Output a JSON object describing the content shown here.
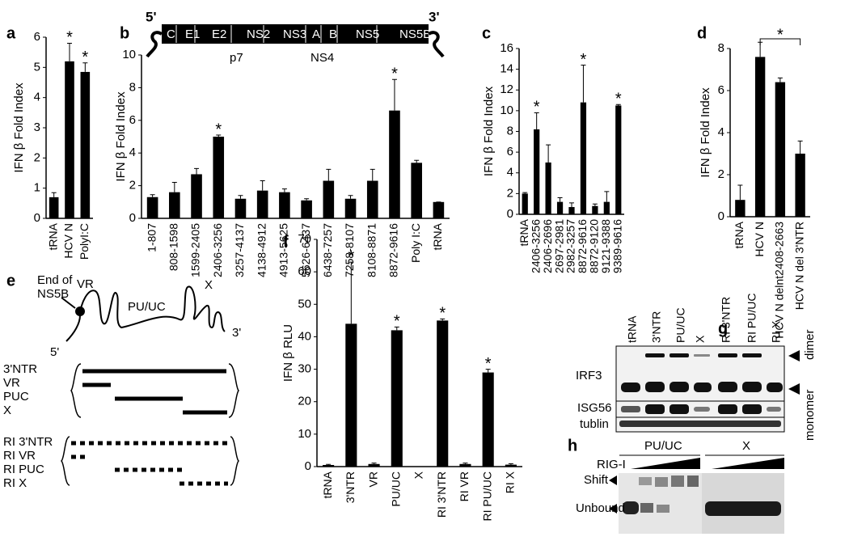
{
  "chart_data": [
    {
      "type": "bar",
      "label": "a",
      "y_label": "IFN β Fold Index",
      "color": "#000000",
      "categories": [
        "tRNA",
        "HCV N",
        "PolyI:C"
      ],
      "values": [
        0.7,
        5.2,
        4.85
      ],
      "errors": [
        0.15,
        0.6,
        0.3
      ],
      "stars": [
        null,
        "*",
        "*"
      ],
      "ylim": [
        0,
        6
      ],
      "yticks": [
        0,
        1,
        2,
        3,
        4,
        5,
        6
      ]
    },
    {
      "type": "bar",
      "label": "b",
      "y_label": "IFN β Fold Index",
      "color": "#000000",
      "categories": [
        "1-807",
        "808-1598",
        "1599-2405",
        "2406-3256",
        "3257-4137",
        "4138-4912",
        "4913-5625",
        "5626-6437",
        "6438-7257",
        "7258-8107",
        "8108-8871",
        "8872-9616",
        "Poly I:C",
        "tRNA"
      ],
      "values": [
        1.3,
        1.6,
        2.7,
        5.0,
        1.2,
        1.7,
        1.6,
        1.1,
        2.3,
        1.2,
        2.3,
        6.6,
        3.4,
        1.0
      ],
      "errors": [
        0.15,
        0.6,
        0.35,
        0.1,
        0.2,
        0.6,
        0.2,
        0.1,
        0.7,
        0.2,
        0.7,
        1.9,
        0.15,
        0
      ],
      "stars": [
        null,
        null,
        null,
        "*",
        null,
        null,
        null,
        null,
        null,
        null,
        null,
        "*",
        null,
        null
      ],
      "ylim": [
        0,
        10
      ],
      "yticks": [
        0,
        2,
        4,
        6,
        8,
        10
      ],
      "genome": {
        "five_prime": "5'",
        "three_prime": "3'",
        "segments": [
          "C",
          "E1",
          "E2",
          "NS2",
          "NS3",
          "A",
          "B",
          "NS5",
          "NS5B"
        ],
        "below": [
          "p7",
          "NS4"
        ]
      }
    },
    {
      "type": "bar",
      "label": "c",
      "y_label": "IFN β Fold Index",
      "color": "#000000",
      "categories": [
        "tRNA",
        "2406-3256",
        "2406-2696",
        "2697-2981",
        "2982-3257",
        "8872-9616",
        "8872-9120",
        "9121-9388",
        "9389-9616"
      ],
      "values": [
        2.0,
        8.2,
        5.0,
        1.2,
        0.7,
        10.8,
        0.8,
        1.2,
        10.5
      ],
      "errors": [
        0.1,
        1.6,
        1.7,
        0.4,
        0.4,
        3.6,
        0.2,
        1.0,
        0.1
      ],
      "stars": [
        null,
        "*",
        null,
        null,
        null,
        "*",
        null,
        null,
        "*"
      ],
      "ylim": [
        0,
        16
      ],
      "yticks": [
        0,
        2,
        4,
        6,
        8,
        10,
        12,
        14,
        16
      ]
    },
    {
      "type": "bar",
      "label": "d",
      "y_label": "IFN β Fold Index",
      "color": "#000000",
      "categories": [
        "tRNA",
        "HCV N",
        "HCV N delnt2408-2663",
        "HCV N del 3'NTR"
      ],
      "values": [
        0.8,
        7.6,
        6.4,
        3.0
      ],
      "errors": [
        0.7,
        0.7,
        0.2,
        0.6
      ],
      "bracket_label": "*",
      "ylim": [
        0,
        8
      ],
      "yticks": [
        0,
        2,
        4,
        6,
        8
      ]
    },
    {
      "type": "bar",
      "label": "f",
      "y_label": "IFN β RLU",
      "color": "#000000",
      "categories": [
        "tRNA",
        "3'NTR",
        "VR",
        "PU/UC",
        "X",
        "RI 3'NTR",
        "RI VR",
        "RI PU/UC",
        "RI X"
      ],
      "values": [
        0.5,
        44,
        0.8,
        42,
        0,
        45,
        0.8,
        29,
        0.6
      ],
      "errors": [
        0.2,
        19,
        0.3,
        1,
        0,
        0.5,
        0.3,
        1,
        0.3
      ],
      "stars": [
        null,
        "*",
        null,
        "*",
        null,
        "*",
        null,
        "*",
        null
      ],
      "ylim": [
        0,
        70
      ],
      "yticks": [
        0,
        10,
        20,
        30,
        40,
        50,
        60,
        70
      ]
    }
  ],
  "panel_e": {
    "label": "e",
    "end_label": [
      "End of",
      "NS5B"
    ],
    "regions": [
      "VR",
      "PU/UC",
      "X"
    ],
    "ends": [
      "5'",
      "3'"
    ],
    "constructs": [
      "3'NTR",
      "VR",
      "PUC",
      "X"
    ],
    "ri_constructs": [
      "RI 3'NTR",
      "RI VR",
      "RI PUC",
      "RI X"
    ]
  },
  "panel_g": {
    "label": "g",
    "lanes": [
      "tRNA",
      "3'NTR",
      "PU/UC",
      "X",
      "RI 3'NTR",
      "RI PU/UC",
      "RI X"
    ],
    "rows": [
      "IRF3",
      "ISG56",
      "tublin"
    ],
    "bands": [
      "dimer",
      "monomer"
    ]
  },
  "panel_h": {
    "label": "h",
    "groups": [
      "PU/UC",
      "X"
    ],
    "treatment": "RIG-I",
    "bands": [
      "Shift",
      "Unbound"
    ]
  }
}
